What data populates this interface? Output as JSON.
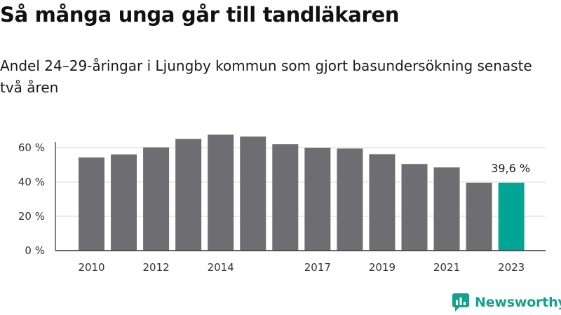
{
  "chart_data": {
    "type": "bar",
    "title": "Så många unga går till tandläkaren",
    "subtitle": "Andel 24–29-åringar i Ljungby kommun som gjort basundersökning senaste två åren",
    "categories": [
      "2010",
      "2011",
      "2012",
      "2013",
      "2014",
      "2015",
      "2016",
      "2017",
      "2018",
      "2019",
      "2020",
      "2021",
      "2022",
      "2023"
    ],
    "x_tick_labels": [
      "2010",
      "",
      "2012",
      "",
      "2014",
      "",
      "",
      "2017",
      "",
      "2019",
      "",
      "2021",
      "",
      "2023"
    ],
    "values": [
      54.3,
      56.1,
      60.2,
      65.1,
      67.6,
      66.5,
      62.0,
      60.0,
      59.5,
      56.2,
      50.5,
      48.5,
      39.6,
      39.6
    ],
    "ylim": [
      0,
      70
    ],
    "y_ticks": [
      0,
      20,
      40,
      60
    ],
    "y_tick_labels": [
      "0 %",
      "20 %",
      "40 %",
      "60 %"
    ],
    "grid": true,
    "annotations": [
      {
        "category": "2023",
        "text": "39,6 %"
      }
    ],
    "colors": {
      "bar": "#6e6d72",
      "highlight": "#00a596",
      "grid": "#d9d9d9",
      "axis": "#333333"
    },
    "highlight_index": 13
  },
  "brand": {
    "name": "Newsworthy",
    "icon": "newsworthy-logo-icon"
  }
}
